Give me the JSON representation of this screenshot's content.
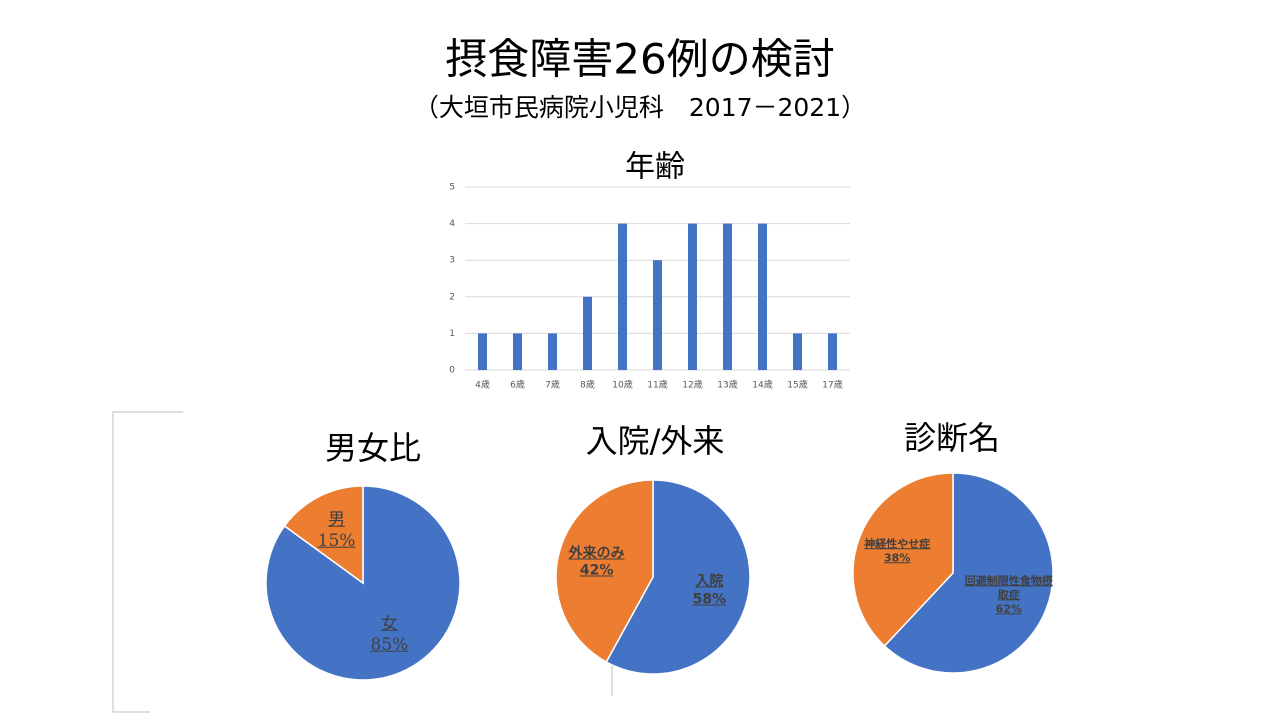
{
  "slide": {
    "title": "摂食障害26例の検討",
    "subtitle": "（大垣市民病院小児科　2017－2021）"
  },
  "chart_data": [
    {
      "type": "bar",
      "title": "年齢",
      "categories": [
        "4歳",
        "6歳",
        "7歳",
        "8歳",
        "10歳",
        "11歳",
        "12歳",
        "13歳",
        "14歳",
        "15歳",
        "17歳"
      ],
      "values": [
        1,
        1,
        1,
        2,
        4,
        3,
        4,
        4,
        4,
        1,
        1
      ],
      "color": "#4472c4",
      "ylim": [
        0,
        5
      ],
      "yticks": [
        0,
        1,
        2,
        3,
        4,
        5
      ],
      "grid": true
    },
    {
      "type": "pie",
      "title": "男女比",
      "categories": [
        "女",
        "男"
      ],
      "values": [
        85,
        15
      ],
      "value_labels": [
        "85%",
        "15%"
      ],
      "colors": [
        "#4472c4",
        "#ed7d31"
      ]
    },
    {
      "type": "pie",
      "title": "入院/外来",
      "categories": [
        "入院",
        "外来のみ"
      ],
      "values": [
        58,
        42
      ],
      "value_labels": [
        "58%",
        "42%"
      ],
      "colors": [
        "#4472c4",
        "#ed7d31"
      ]
    },
    {
      "type": "pie",
      "title": "診断名",
      "categories": [
        "回避制限性食物摂取症",
        "神経性やせ症"
      ],
      "values": [
        62,
        38
      ],
      "value_labels": [
        "62%",
        "38%"
      ],
      "colors": [
        "#4472c4",
        "#ed7d31"
      ]
    }
  ]
}
